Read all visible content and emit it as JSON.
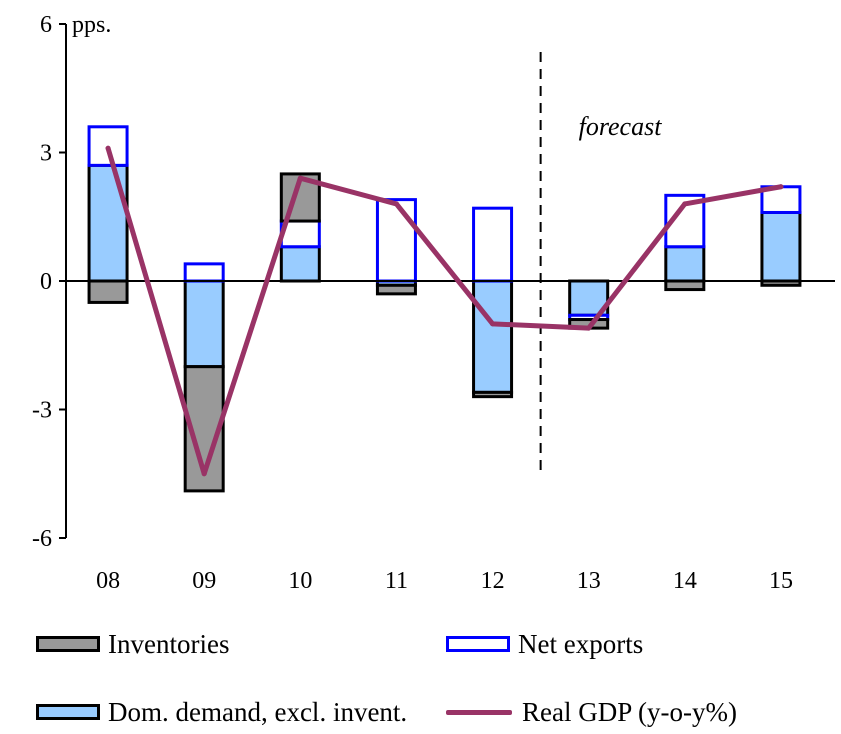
{
  "chart_data": {
    "type": "bar",
    "stacked": true,
    "categories": [
      "08",
      "09",
      "10",
      "11",
      "12",
      "13",
      "14",
      "15"
    ],
    "ylim": [
      -6,
      6
    ],
    "yticks": [
      "6",
      "3",
      "0",
      "-3",
      "-6"
    ],
    "ylabel": "pps.",
    "xlabel": "",
    "title": "",
    "grid": false,
    "legend_position": "bottom",
    "annotation": "forecast",
    "series": [
      {
        "name": "Dom. demand, excl. invent.",
        "kind": "bar",
        "color": "#99ccff",
        "values": [
          2.7,
          -2.0,
          0.8,
          -0.1,
          -2.6,
          -0.8,
          0.8,
          1.6
        ]
      },
      {
        "name": "Net exports",
        "kind": "bar",
        "color": "#ffffff",
        "edge": "#0000ff",
        "values": [
          0.9,
          0.4,
          0.6,
          1.9,
          1.7,
          -0.1,
          1.2,
          0.6
        ]
      },
      {
        "name": "Inventories",
        "kind": "bar",
        "color": "#999999",
        "values": [
          -0.5,
          -2.9,
          1.1,
          -0.2,
          -0.1,
          -0.2,
          -0.2,
          -0.1
        ]
      },
      {
        "name": "Real GDP (y-o-y%)",
        "kind": "line",
        "color": "#993366",
        "values": [
          3.1,
          -4.5,
          2.4,
          1.8,
          -1.0,
          -1.1,
          1.8,
          2.2
        ]
      }
    ],
    "forecast_after_index": 4
  },
  "legend": {
    "inventories": "Inventories",
    "net_exports": "Net exports",
    "dom_demand": "Dom. demand, excl. invent.",
    "real_gdp": "Real GDP (y-o-y%)"
  }
}
